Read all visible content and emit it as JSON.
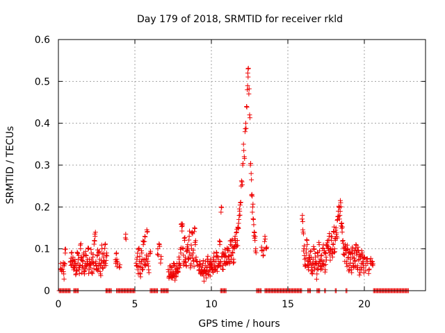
{
  "chart_data": {
    "type": "scatter",
    "title": "Day 179 of 2018, SRMTID for receiver rkld",
    "xlabel": "GPS time / hours",
    "ylabel": "SRMTID / TECUs",
    "xlim": [
      0,
      24
    ],
    "ylim": [
      0,
      0.6
    ],
    "xticks": [
      0,
      5,
      10,
      15,
      20
    ],
    "yticks": [
      0,
      0.1,
      0.2,
      0.3,
      0.4,
      0.5,
      0.6
    ],
    "xtick_labels": [
      "0",
      "5",
      "10",
      "15",
      "20"
    ],
    "ytick_labels": [
      "0",
      "0.1",
      "0.2",
      "0.3",
      "0.4",
      "0.5",
      "0.6"
    ],
    "grid": true,
    "marker": "+",
    "color": "#ee0000",
    "series": [
      {
        "name": "SRMTID",
        "points": [
          [
            0.15,
            0.065
          ],
          [
            0.2,
            0.05
          ],
          [
            0.3,
            0.06
          ],
          [
            0.35,
            0.04
          ],
          [
            0.4,
            0.065
          ],
          [
            0.45,
            0.09
          ],
          [
            0.8,
            0.07
          ],
          [
            0.85,
            0.09
          ],
          [
            0.9,
            0.06
          ],
          [
            0.95,
            0.08
          ],
          [
            1.0,
            0.05
          ],
          [
            1.05,
            0.07
          ],
          [
            1.1,
            0.065
          ],
          [
            1.15,
            0.04
          ],
          [
            1.2,
            0.06
          ],
          [
            1.25,
            0.09
          ],
          [
            1.3,
            0.075
          ],
          [
            1.35,
            0.05
          ],
          [
            1.4,
            0.06
          ],
          [
            1.45,
            0.1
          ],
          [
            1.5,
            0.08
          ],
          [
            1.55,
            0.055
          ],
          [
            1.6,
            0.07
          ],
          [
            1.65,
            0.09
          ],
          [
            1.7,
            0.04
          ],
          [
            1.75,
            0.065
          ],
          [
            1.8,
            0.085
          ],
          [
            1.85,
            0.06
          ],
          [
            1.9,
            0.075
          ],
          [
            1.95,
            0.1
          ],
          [
            2.0,
            0.05
          ],
          [
            2.05,
            0.07
          ],
          [
            2.1,
            0.06
          ],
          [
            2.15,
            0.09
          ],
          [
            2.2,
            0.045
          ],
          [
            2.25,
            0.08
          ],
          [
            2.3,
            0.065
          ],
          [
            2.35,
            0.12
          ],
          [
            2.4,
            0.13
          ],
          [
            2.45,
            0.07
          ],
          [
            2.5,
            0.05
          ],
          [
            2.55,
            0.085
          ],
          [
            2.6,
            0.06
          ],
          [
            2.65,
            0.09
          ],
          [
            2.7,
            0.075
          ],
          [
            2.75,
            0.04
          ],
          [
            2.8,
            0.065
          ],
          [
            2.85,
            0.1
          ],
          [
            2.9,
            0.055
          ],
          [
            2.95,
            0.08
          ],
          [
            3.0,
            0.07
          ],
          [
            3.05,
            0.11
          ],
          [
            3.1,
            0.06
          ],
          [
            3.15,
            0.09
          ],
          [
            3.75,
            0.065
          ],
          [
            3.8,
            0.09
          ],
          [
            3.85,
            0.07
          ],
          [
            4.0,
            0.055
          ],
          [
            4.4,
            0.135
          ],
          [
            5.1,
            0.06
          ],
          [
            5.15,
            0.08
          ],
          [
            5.2,
            0.05
          ],
          [
            5.25,
            0.1
          ],
          [
            5.3,
            0.07
          ],
          [
            5.35,
            0.04
          ],
          [
            5.4,
            0.065
          ],
          [
            5.45,
            0.09
          ],
          [
            5.5,
            0.055
          ],
          [
            5.55,
            0.11
          ],
          [
            5.6,
            0.075
          ],
          [
            5.65,
            0.13
          ],
          [
            5.7,
            0.06
          ],
          [
            5.75,
            0.085
          ],
          [
            5.8,
            0.14
          ],
          [
            5.85,
            0.07
          ],
          [
            5.9,
            0.05
          ],
          [
            6.0,
            0.09
          ],
          [
            6.5,
            0.1
          ],
          [
            6.6,
            0.11
          ],
          [
            6.7,
            0.075
          ],
          [
            7.2,
            0.045
          ],
          [
            7.25,
            0.035
          ],
          [
            7.3,
            0.05
          ],
          [
            7.35,
            0.04
          ],
          [
            7.4,
            0.055
          ],
          [
            7.45,
            0.03
          ],
          [
            7.5,
            0.045
          ],
          [
            7.55,
            0.06
          ],
          [
            7.6,
            0.04
          ],
          [
            7.65,
            0.05
          ],
          [
            7.7,
            0.035
          ],
          [
            7.75,
            0.065
          ],
          [
            7.8,
            0.045
          ],
          [
            7.85,
            0.055
          ],
          [
            7.9,
            0.075
          ],
          [
            7.95,
            0.06
          ],
          [
            8.0,
            0.09
          ],
          [
            8.05,
            0.16
          ],
          [
            8.1,
            0.155
          ],
          [
            8.15,
            0.1
          ],
          [
            8.2,
            0.07
          ],
          [
            8.25,
            0.12
          ],
          [
            8.3,
            0.08
          ],
          [
            8.35,
            0.06
          ],
          [
            8.4,
            0.095
          ],
          [
            8.45,
            0.11
          ],
          [
            8.5,
            0.075
          ],
          [
            8.55,
            0.13
          ],
          [
            8.6,
            0.085
          ],
          [
            8.65,
            0.06
          ],
          [
            8.7,
            0.1
          ],
          [
            8.75,
            0.14
          ],
          [
            8.8,
            0.09
          ],
          [
            8.85,
            0.07
          ],
          [
            8.9,
            0.15
          ],
          [
            8.95,
            0.11
          ],
          [
            9.0,
            0.08
          ],
          [
            9.1,
            0.06
          ],
          [
            9.2,
            0.05
          ],
          [
            9.25,
            0.07
          ],
          [
            9.3,
            0.04
          ],
          [
            9.35,
            0.055
          ],
          [
            9.4,
            0.045
          ],
          [
            9.45,
            0.065
          ],
          [
            9.5,
            0.035
          ],
          [
            9.55,
            0.05
          ],
          [
            9.6,
            0.06
          ],
          [
            9.65,
            0.04
          ],
          [
            9.7,
            0.055
          ],
          [
            9.75,
            0.07
          ],
          [
            9.8,
            0.045
          ],
          [
            9.85,
            0.06
          ],
          [
            9.9,
            0.05
          ],
          [
            9.95,
            0.075
          ],
          [
            10.0,
            0.055
          ],
          [
            10.05,
            0.065
          ],
          [
            10.1,
            0.045
          ],
          [
            10.15,
            0.08
          ],
          [
            10.2,
            0.06
          ],
          [
            10.25,
            0.05
          ],
          [
            10.3,
            0.07
          ],
          [
            10.35,
            0.09
          ],
          [
            10.4,
            0.055
          ],
          [
            10.45,
            0.075
          ],
          [
            10.5,
            0.065
          ],
          [
            10.55,
            0.11
          ],
          [
            10.6,
            0.07
          ],
          [
            10.65,
            0.2
          ],
          [
            10.7,
            0.08
          ],
          [
            10.75,
            0.06
          ],
          [
            10.8,
            0.085
          ],
          [
            10.85,
            0.07
          ],
          [
            10.9,
            0.09
          ],
          [
            10.95,
            0.065
          ],
          [
            11.0,
            0.08
          ],
          [
            11.05,
            0.1
          ],
          [
            11.1,
            0.075
          ],
          [
            11.15,
            0.095
          ],
          [
            11.2,
            0.07
          ],
          [
            11.25,
            0.11
          ],
          [
            11.3,
            0.085
          ],
          [
            11.35,
            0.12
          ],
          [
            11.4,
            0.09
          ],
          [
            11.45,
            0.075
          ],
          [
            11.5,
            0.1
          ],
          [
            11.55,
            0.13
          ],
          [
            11.6,
            0.11
          ],
          [
            11.65,
            0.14
          ],
          [
            11.7,
            0.12
          ],
          [
            11.75,
            0.15
          ],
          [
            11.8,
            0.17
          ],
          [
            11.85,
            0.19
          ],
          [
            11.9,
            0.21
          ],
          [
            11.95,
            0.25
          ],
          [
            12.0,
            0.26
          ],
          [
            12.05,
            0.3
          ],
          [
            12.1,
            0.35
          ],
          [
            12.15,
            0.32
          ],
          [
            12.2,
            0.38
          ],
          [
            12.25,
            0.4
          ],
          [
            12.3,
            0.44
          ],
          [
            12.35,
            0.48
          ],
          [
            12.38,
            0.52
          ],
          [
            12.4,
            0.53
          ],
          [
            12.45,
            0.47
          ],
          [
            12.5,
            0.42
          ],
          [
            12.55,
            0.3
          ],
          [
            12.6,
            0.28
          ],
          [
            12.65,
            0.23
          ],
          [
            12.7,
            0.2
          ],
          [
            12.75,
            0.17
          ],
          [
            12.8,
            0.14
          ],
          [
            12.85,
            0.12
          ],
          [
            12.9,
            0.1
          ],
          [
            13.3,
            0.095
          ],
          [
            13.4,
            0.085
          ],
          [
            13.5,
            0.13
          ],
          [
            13.6,
            0.1
          ],
          [
            15.95,
            0.18
          ],
          [
            16.0,
            0.14
          ],
          [
            16.05,
            0.1
          ],
          [
            16.1,
            0.075
          ],
          [
            16.15,
            0.06
          ],
          [
            16.2,
            0.09
          ],
          [
            16.25,
            0.12
          ],
          [
            16.3,
            0.07
          ],
          [
            16.35,
            0.05
          ],
          [
            16.4,
            0.085
          ],
          [
            16.45,
            0.065
          ],
          [
            16.5,
            0.095
          ],
          [
            16.55,
            0.06
          ],
          [
            16.6,
            0.04
          ],
          [
            16.65,
            0.075
          ],
          [
            16.7,
            0.1
          ],
          [
            16.75,
            0.055
          ],
          [
            16.8,
            0.08
          ],
          [
            16.85,
            0.065
          ],
          [
            16.9,
            0.04
          ],
          [
            16.95,
            0.09
          ],
          [
            17.0,
            0.06
          ],
          [
            17.05,
            0.11
          ],
          [
            17.1,
            0.075
          ],
          [
            17.15,
            0.05
          ],
          [
            17.2,
            0.085
          ],
          [
            17.25,
            0.065
          ],
          [
            17.3,
            0.1
          ],
          [
            17.35,
            0.07
          ],
          [
            17.4,
            0.09
          ],
          [
            17.45,
            0.05
          ],
          [
            17.5,
            0.08
          ],
          [
            17.55,
            0.11
          ],
          [
            17.6,
            0.12
          ],
          [
            17.65,
            0.1
          ],
          [
            17.7,
            0.13
          ],
          [
            17.75,
            0.085
          ],
          [
            17.8,
            0.1
          ],
          [
            17.85,
            0.12
          ],
          [
            17.9,
            0.09
          ],
          [
            17.95,
            0.11
          ],
          [
            18.0,
            0.14
          ],
          [
            18.05,
            0.1
          ],
          [
            18.1,
            0.12
          ],
          [
            18.15,
            0.15
          ],
          [
            18.2,
            0.13
          ],
          [
            18.25,
            0.17
          ],
          [
            18.3,
            0.19
          ],
          [
            18.35,
            0.2
          ],
          [
            18.4,
            0.18
          ],
          [
            18.45,
            0.21
          ],
          [
            18.5,
            0.16
          ],
          [
            18.55,
            0.14
          ],
          [
            18.6,
            0.12
          ],
          [
            18.65,
            0.1
          ],
          [
            18.7,
            0.085
          ],
          [
            18.75,
            0.11
          ],
          [
            18.8,
            0.09
          ],
          [
            18.85,
            0.07
          ],
          [
            18.9,
            0.1
          ],
          [
            18.95,
            0.08
          ],
          [
            19.0,
            0.06
          ],
          [
            19.05,
            0.09
          ],
          [
            19.1,
            0.075
          ],
          [
            19.15,
            0.05
          ],
          [
            19.2,
            0.1
          ],
          [
            19.25,
            0.08
          ],
          [
            19.3,
            0.06
          ],
          [
            19.35,
            0.09
          ],
          [
            19.4,
            0.07
          ],
          [
            19.45,
            0.11
          ],
          [
            19.5,
            0.085
          ],
          [
            19.55,
            0.06
          ],
          [
            19.6,
            0.095
          ],
          [
            19.65,
            0.075
          ],
          [
            19.7,
            0.05
          ],
          [
            19.75,
            0.08
          ],
          [
            19.8,
            0.065
          ],
          [
            19.85,
            0.09
          ],
          [
            19.9,
            0.07
          ],
          [
            19.95,
            0.055
          ],
          [
            20.0,
            0.08
          ],
          [
            20.1,
            0.06
          ],
          [
            20.2,
            0.075
          ],
          [
            20.3,
            0.05
          ],
          [
            20.4,
            0.065
          ],
          [
            20.5,
            0.07
          ],
          [
            20.55,
            0.06
          ]
        ],
        "zero_ranges": [
          [
            0.05,
            0.8
          ],
          [
            1.0,
            1.3
          ],
          [
            3.1,
            3.5
          ],
          [
            3.8,
            5.05
          ],
          [
            6.0,
            6.5
          ],
          [
            6.7,
            7.2
          ],
          [
            10.6,
            11.0
          ],
          [
            12.95,
            13.3
          ],
          [
            13.5,
            15.9
          ],
          [
            16.3,
            16.5
          ],
          [
            16.9,
            17.1
          ],
          [
            17.4,
            17.5
          ],
          [
            18.1,
            18.2
          ],
          [
            18.8,
            18.9
          ],
          [
            20.6,
            22.9
          ]
        ]
      }
    ]
  }
}
